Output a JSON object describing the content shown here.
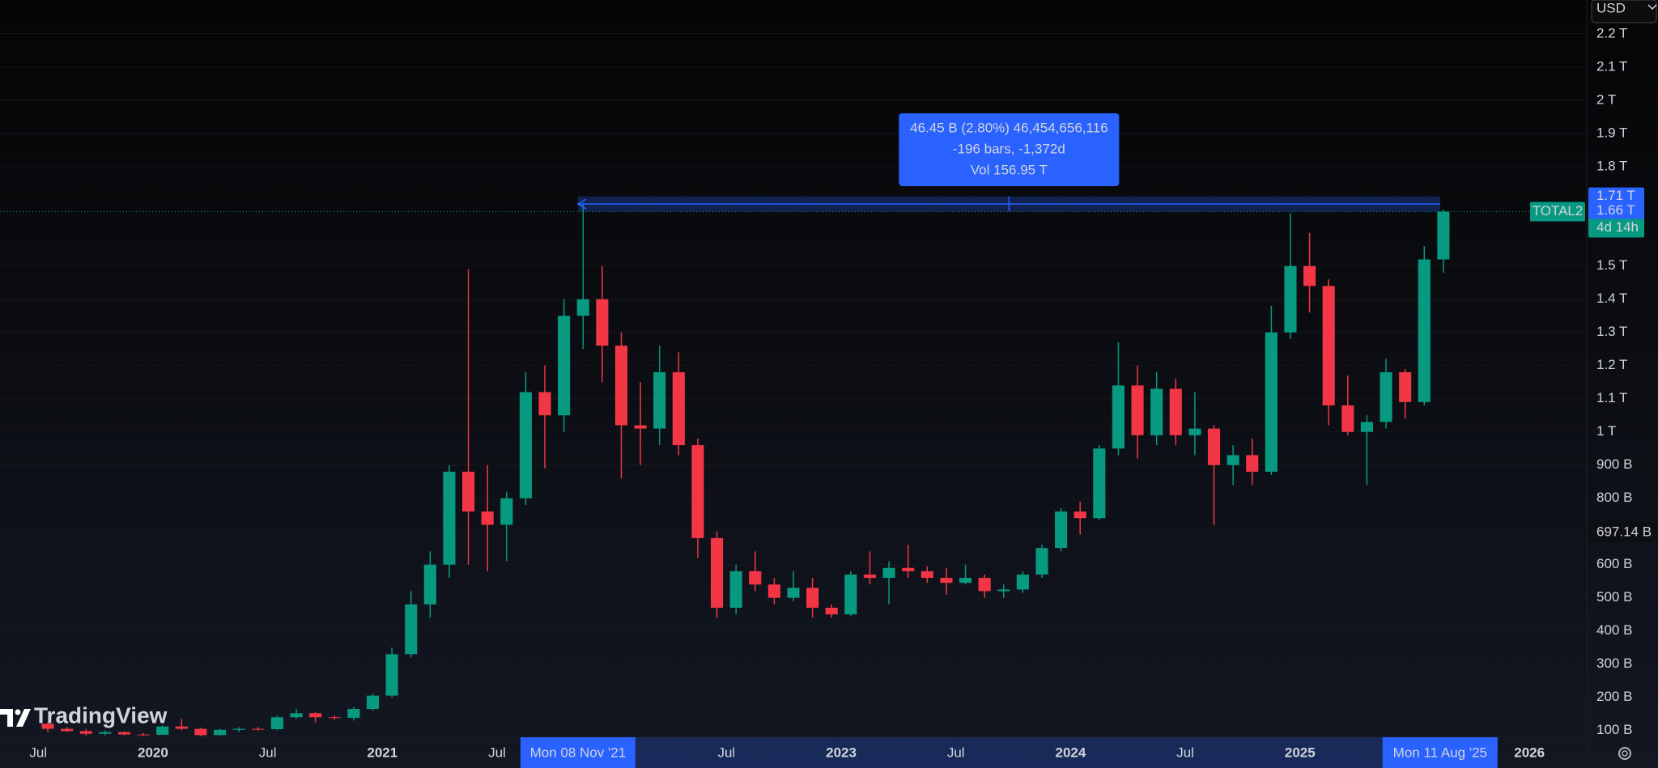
{
  "chart_data": {
    "type": "candlestick",
    "symbol": "TOTAL2",
    "currency": "USD",
    "brand": "TradingView",
    "countdown": "4d 14h",
    "up_color": "#089981",
    "down_color": "#f23645",
    "grid": true,
    "xlim": [
      "2019-05",
      "2026-04"
    ],
    "ylim": [
      82,
      2302
    ],
    "x": [
      "2019-07",
      "2019-08",
      "2019-09",
      "2019-10",
      "2019-11",
      "2019-12",
      "2020-01",
      "2020-02",
      "2020-03",
      "2020-04",
      "2020-05",
      "2020-06",
      "2020-07",
      "2020-08",
      "2020-09",
      "2020-10",
      "2020-11",
      "2020-12",
      "2021-01",
      "2021-02",
      "2021-03",
      "2021-04",
      "2021-05",
      "2021-06",
      "2021-07",
      "2021-08",
      "2021-09",
      "2021-10",
      "2021-11",
      "2021-12",
      "2022-01",
      "2022-02",
      "2022-03",
      "2022-04",
      "2022-05",
      "2022-06",
      "2022-07",
      "2022-08",
      "2022-09",
      "2022-10",
      "2022-11",
      "2022-12",
      "2023-01",
      "2023-02",
      "2023-03",
      "2023-04",
      "2023-05",
      "2023-06",
      "2023-07",
      "2023-08",
      "2023-09",
      "2023-10",
      "2023-11",
      "2023-12",
      "2024-01",
      "2024-02",
      "2024-03",
      "2024-04",
      "2024-05",
      "2024-06",
      "2024-07",
      "2024-08",
      "2024-09",
      "2024-10",
      "2024-11",
      "2024-12",
      "2025-01",
      "2025-02",
      "2025-03",
      "2025-04",
      "2025-05",
      "2025-06",
      "2025-07",
      "2025-08"
    ],
    "open": [
      120,
      105,
      98,
      90,
      95,
      88,
      87,
      112,
      105,
      86,
      102,
      105,
      104,
      140,
      152,
      140,
      138,
      165,
      205,
      330,
      480,
      600,
      880,
      760,
      720,
      800,
      1120,
      1050,
      1350,
      1400,
      1260,
      1020,
      1010,
      1180,
      960,
      680,
      470,
      580,
      540,
      500,
      530,
      470,
      450,
      570,
      560,
      590,
      580,
      560,
      545,
      560,
      520,
      525,
      570,
      650,
      760,
      740,
      950,
      1140,
      990,
      1130,
      990,
      1010,
      900,
      930,
      880,
      1300,
      1500,
      1440,
      1080,
      1000,
      1030,
      1180,
      1090,
      1520
    ],
    "high": [
      125,
      110,
      105,
      100,
      98,
      92,
      115,
      135,
      108,
      105,
      110,
      110,
      145,
      165,
      155,
      145,
      170,
      210,
      350,
      520,
      640,
      900,
      1490,
      900,
      820,
      1180,
      1200,
      1400,
      1690,
      1500,
      1300,
      1150,
      1260,
      1240,
      980,
      700,
      600,
      640,
      560,
      580,
      560,
      480,
      580,
      640,
      610,
      660,
      595,
      590,
      600,
      570,
      540,
      580,
      660,
      770,
      790,
      960,
      1270,
      1200,
      1180,
      1160,
      1120,
      1020,
      960,
      980,
      1380,
      1660,
      1600,
      1460,
      1170,
      1050,
      1220,
      1190,
      1560,
      1670
    ],
    "low": [
      95,
      95,
      85,
      86,
      86,
      84,
      86,
      100,
      83,
      85,
      95,
      100,
      102,
      135,
      125,
      132,
      130,
      160,
      200,
      320,
      440,
      560,
      600,
      580,
      610,
      780,
      890,
      1000,
      1250,
      1150,
      860,
      900,
      960,
      930,
      620,
      440,
      450,
      520,
      480,
      490,
      440,
      440,
      445,
      540,
      480,
      560,
      545,
      510,
      540,
      500,
      500,
      515,
      560,
      640,
      690,
      735,
      930,
      920,
      960,
      960,
      930,
      720,
      840,
      840,
      870,
      1280,
      1360,
      1020,
      990,
      840,
      1010,
      1040,
      1080,
      1480
    ],
    "close": [
      105,
      98,
      90,
      95,
      88,
      87,
      112,
      105,
      86,
      102,
      105,
      104,
      140,
      152,
      140,
      138,
      165,
      205,
      330,
      480,
      600,
      880,
      760,
      720,
      800,
      1120,
      1050,
      1350,
      1400,
      1260,
      1020,
      1010,
      1180,
      960,
      680,
      470,
      580,
      540,
      500,
      530,
      470,
      450,
      570,
      560,
      590,
      580,
      560,
      545,
      560,
      520,
      525,
      570,
      650,
      760,
      740,
      950,
      1140,
      990,
      1130,
      990,
      1010,
      900,
      930,
      880,
      1300,
      1500,
      1440,
      1080,
      1000,
      1030,
      1180,
      1090,
      1520,
      1664
    ],
    "xticks": [
      {
        "value": "2019-07",
        "label": "Jul"
      },
      {
        "value": "2020-01",
        "label": "2020"
      },
      {
        "value": "2020-07",
        "label": "Jul"
      },
      {
        "value": "2021-01",
        "label": "2021"
      },
      {
        "value": "2021-07",
        "label": "Jul"
      },
      {
        "value": "2022-07",
        "label": "Jul"
      },
      {
        "value": "2023-01",
        "label": "2023"
      },
      {
        "value": "2023-07",
        "label": "Jul"
      },
      {
        "value": "2024-01",
        "label": "2024"
      },
      {
        "value": "2024-07",
        "label": "Jul"
      },
      {
        "value": "2025-01",
        "label": "2025"
      },
      {
        "value": "2026-01",
        "label": "2026"
      }
    ],
    "yticks": [
      {
        "value": 100,
        "label": "100 B"
      },
      {
        "value": 200,
        "label": "200 B"
      },
      {
        "value": 300,
        "label": "300 B"
      },
      {
        "value": 400,
        "label": "400 B"
      },
      {
        "value": 500,
        "label": "500 B"
      },
      {
        "value": 600,
        "label": "600 B"
      },
      {
        "value": 800,
        "label": "800 B"
      },
      {
        "value": 900,
        "label": "900 B"
      },
      {
        "value": 1000,
        "label": "1 T"
      },
      {
        "value": 1100,
        "label": "1.1 T"
      },
      {
        "value": 1200,
        "label": "1.2 T"
      },
      {
        "value": 1300,
        "label": "1.3 T"
      },
      {
        "value": 1400,
        "label": "1.4 T"
      },
      {
        "value": 1500,
        "label": "1.5 T"
      },
      {
        "value": 1800,
        "label": "1.8 T"
      },
      {
        "value": 1900,
        "label": "1.9 T"
      },
      {
        "value": 2000,
        "label": "2 T"
      },
      {
        "value": 2100,
        "label": "2.1 T"
      },
      {
        "value": 2200,
        "label": "2.2 T"
      }
    ],
    "crosshair": {
      "value": 697.14,
      "label": "697.14 B"
    },
    "measure": {
      "start": {
        "value": "2021-11-08",
        "label": "Mon 08 Nov '21"
      },
      "end": {
        "value": "2025-08-11",
        "label": "Mon 11 Aug '25"
      },
      "high": {
        "value": 1710,
        "label": "1.71 T"
      },
      "low": {
        "value": 1664,
        "label": "1.66 T"
      },
      "lines": [
        "46.45 B (2.80%) 46,454,656,116",
        "-196 bars, -1,372d",
        "Vol 156.95 T"
      ]
    }
  }
}
